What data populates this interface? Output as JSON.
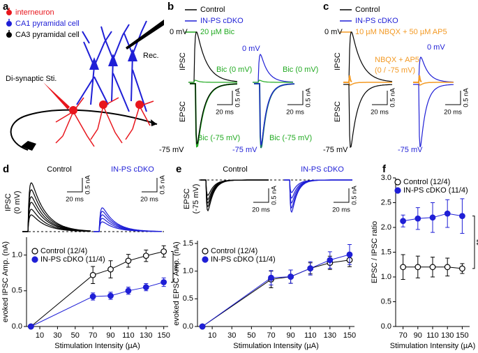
{
  "panel_labels": [
    "a",
    "b",
    "c",
    "d",
    "e",
    "f"
  ],
  "schematic": {
    "legend": [
      "interneuron",
      "CA1 pyramidal cell",
      "CA3 pyramidal cell"
    ],
    "stim": "Di-synaptic Sti.",
    "rec": "Rec."
  },
  "panel_b": {
    "legend": [
      "Control",
      "IN-PS cDKO",
      "20 µM Bic"
    ],
    "hold_ipsc": "0 mV",
    "ipsc": "IPSC",
    "drug_ipsc": "Bic (0 mV)",
    "epsc": "EPSC",
    "drug_epsc": "Bic (-75 mV)",
    "hold_epsc": "-75 mV",
    "scale_y": "0.5 nA",
    "scale_x": "20 ms"
  },
  "panel_c": {
    "legend": [
      "Control",
      "IN-PS cDKO",
      "10 µM NBQX + 50 µM AP5"
    ],
    "hold_ipsc": "0 mV",
    "ipsc": "IPSC",
    "drug": "NBQX + AP5",
    "drug_hold": "(0 / -75 mV)",
    "epsc": "EPSC",
    "hold_epsc": "-75 mV",
    "scale_y": "0.5 nA",
    "scale_x": "20 ms"
  },
  "panel_d": {
    "groups": [
      "Control",
      "IN-PS cDKO"
    ],
    "trace_label": "IPSC",
    "trace_hold": "(0 mV)",
    "scale_y": "0.5 nA",
    "scale_x": "20 ms"
  },
  "panel_e": {
    "groups": [
      "Control",
      "IN-PS cDKO"
    ],
    "trace_label": "EPSC",
    "trace_hold": "(-75 mV)",
    "scale_y": "0.5 nA",
    "scale_x": "20 ms"
  },
  "chart_data": [
    {
      "type": "line",
      "xlabel": "Stimulation Intensity (µA)",
      "ylabel": "evoked IPSC Amp. (nA)",
      "xlim": [
        -5,
        155
      ],
      "xticks": [
        10,
        30,
        50,
        70,
        90,
        110,
        130,
        150
      ],
      "ylim": [
        0,
        1.25
      ],
      "yticks": [
        {
          "value": 0,
          "label": "0.0"
        },
        {
          "value": 0.5,
          "label": "0.5"
        },
        {
          "value": 1,
          "label": "1.0"
        }
      ],
      "x": [
        0,
        70,
        90,
        110,
        130,
        150
      ],
      "series": [
        {
          "name": "Control (12/4)",
          "color": "#000000",
          "filled": false,
          "values": [
            0,
            0.72,
            0.8,
            0.92,
            0.99,
            1.05
          ],
          "errors": [
            0,
            0.12,
            0.12,
            0.09,
            0.08,
            0.08
          ]
        },
        {
          "name": "IN-PS cDKO (11/4)",
          "color": "#1f1fd6",
          "filled": true,
          "values": [
            0,
            0.42,
            0.43,
            0.5,
            0.55,
            0.62
          ],
          "errors": [
            0,
            0.05,
            0.05,
            0.05,
            0.05,
            0.06
          ]
        }
      ],
      "annotation": "***"
    },
    {
      "type": "line",
      "xlabel": "Stimulation Intensity (µA)",
      "ylabel": "evoked EPSC Amp. (nA)",
      "xlim": [
        -5,
        155
      ],
      "xticks": [
        10,
        30,
        50,
        70,
        90,
        110,
        130,
        150
      ],
      "ylim": [
        0,
        1.55
      ],
      "yticks": [
        {
          "value": 0,
          "label": "0.0"
        },
        {
          "value": 0.5,
          "label": "0.5"
        },
        {
          "value": 1,
          "label": "1.0"
        },
        {
          "value": 1.5,
          "label": "1.5"
        }
      ],
      "x": [
        0,
        70,
        90,
        110,
        130,
        150
      ],
      "series": [
        {
          "name": "Control (12/4)",
          "color": "#000000",
          "filled": false,
          "values": [
            0,
            0.85,
            0.9,
            1.05,
            1.15,
            1.2
          ],
          "errors": [
            0,
            0.15,
            0.12,
            0.1,
            0.12,
            0.12
          ]
        },
        {
          "name": "IN-PS cDKO (11/4)",
          "color": "#1f1fd6",
          "filled": true,
          "values": [
            0,
            0.88,
            0.9,
            1.05,
            1.2,
            1.3
          ],
          "errors": [
            0,
            0.13,
            0.12,
            0.12,
            0.15,
            0.18
          ]
        }
      ]
    },
    {
      "type": "line",
      "xlabel": "Stimulation Intensity (µA)",
      "ylabel": "EPSC / IPSC ratio",
      "xlim": [
        60,
        160
      ],
      "xticks": [
        70,
        90,
        110,
        130,
        150
      ],
      "ylim": [
        0,
        3
      ],
      "yticks": [
        {
          "value": 0,
          "label": "0.0"
        },
        {
          "value": 0.5,
          "label": "0.5"
        },
        {
          "value": 1,
          "label": "1.0"
        },
        {
          "value": 1.5,
          "label": "1.5"
        },
        {
          "value": 2,
          "label": "2.0"
        },
        {
          "value": 2.5,
          "label": "2.5"
        },
        {
          "value": 3,
          "label": "3.0"
        }
      ],
      "x": [
        70,
        90,
        110,
        130,
        150
      ],
      "series": [
        {
          "name": "Control (12/4)",
          "color": "#000000",
          "filled": false,
          "values": [
            1.2,
            1.2,
            1.2,
            1.2,
            1.17
          ],
          "errors": [
            0.25,
            0.22,
            0.2,
            0.18,
            0.1
          ]
        },
        {
          "name": "IN-PS cDKO (11/4)",
          "color": "#1f1fd6",
          "filled": true,
          "values": [
            2.13,
            2.18,
            2.2,
            2.28,
            2.23
          ],
          "errors": [
            0.12,
            0.22,
            0.3,
            0.28,
            0.35
          ]
        }
      ],
      "annotation": "**"
    }
  ]
}
